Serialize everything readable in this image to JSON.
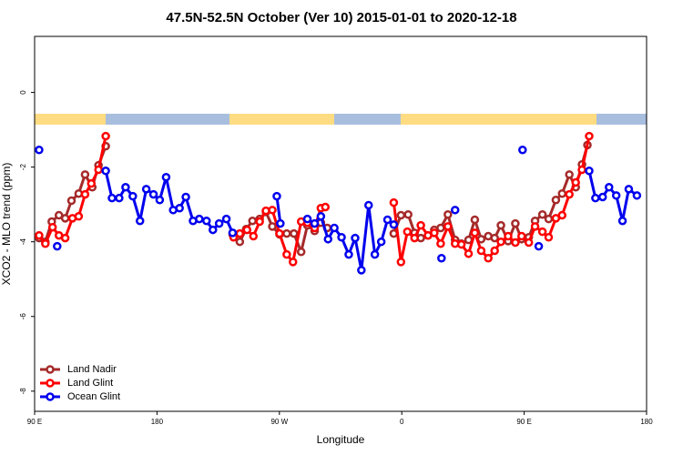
{
  "chart_data": {
    "type": "line",
    "title": "47.5N-52.5N October (Ver 10)   2015-01-01 to 2020-12-18",
    "x_label": "Longitude",
    "y_label": "XCO2 - MLO trend (ppm)",
    "xlim": [
      90,
      540
    ],
    "ylim": [
      -8.54,
      1.5
    ],
    "xticks": [
      {
        "value": 90,
        "label": "90 E"
      },
      {
        "value": 180,
        "label": "180"
      },
      {
        "value": 270,
        "label": "90 W"
      },
      {
        "value": 360,
        "label": "0"
      },
      {
        "value": 450,
        "label": "90 E"
      },
      {
        "value": 540,
        "label": "180"
      }
    ],
    "yticks": [
      0,
      -2,
      -4,
      -6,
      -8
    ],
    "legend": "bottom left",
    "series": [
      {
        "name": "Land Nadir",
        "color": "#a52a2a",
        "x": [
          93.3,
          97.9,
          102.6,
          107.9,
          112.5,
          117.1,
          122.4,
          127.1,
          132.4,
          137,
          142.3,
          null,
          235.6,
          240.9,
          245.6,
          250.2,
          255.5,
          260.1,
          264.8,
          270.1,
          275.4,
          280.7,
          286,
          290.6,
          295.9,
          300.5,
          305.2,
          null,
          354.1,
          359.4,
          364.7,
          369.4,
          374,
          379.3,
          383.9,
          388.6,
          393.9,
          399.2,
          403.8,
          409.1,
          413.7,
          418.4,
          423.6,
          428.3,
          432.9,
          438.2,
          443.5,
          448.1,
          453.4,
          458,
          463.4,
          468,
          473.3,
          477.9,
          483.2,
          487.9,
          492.5,
          496.5
        ],
        "values": [
          -3.9,
          -4.0,
          -3.46,
          -3.29,
          -3.37,
          -2.9,
          -2.71,
          -2.2,
          -2.54,
          -1.95,
          -1.44,
          null,
          -3.8,
          -4.0,
          -3.66,
          -3.44,
          -3.39,
          -3.2,
          -3.59,
          -3.8,
          -3.78,
          -3.78,
          -4.27,
          -3.56,
          -3.71,
          -3.49,
          -3.63,
          null,
          -3.78,
          -3.29,
          -3.27,
          -3.76,
          -3.9,
          -3.83,
          -3.68,
          -3.63,
          -3.27,
          -3.95,
          -4.05,
          -3.95,
          -3.41,
          -3.93,
          -3.85,
          -3.9,
          -3.56,
          -3.98,
          -3.51,
          -3.93,
          -3.88,
          -3.44,
          -3.27,
          -3.39,
          -2.88,
          -2.71,
          -2.2,
          -2.54,
          -1.93,
          -1.41
        ]
      },
      {
        "name": "Land Glint",
        "color": "#ff0000",
        "x": [
          93.3,
          97.9,
          103.2,
          107.9,
          112.5,
          117.8,
          122.4,
          127.1,
          131.7,
          137,
          142.3,
          null,
          236.3,
          240.9,
          246.2,
          250.9,
          255.5,
          260.1,
          264.8,
          270.1,
          275.4,
          280,
          286,
          290.6,
          295.9,
          300.5,
          303.8,
          null,
          354.1,
          359.4,
          364.1,
          369.4,
          374,
          379.3,
          383.9,
          388.6,
          393.9,
          399.2,
          403.8,
          409.1,
          413.7,
          418.4,
          423.6,
          428.3,
          432.9,
          438.2,
          443.5,
          448.1,
          453.4,
          458,
          463.4,
          468,
          473.3,
          477.9,
          483.2,
          487.9,
          492.5,
          497.8
        ],
        "values": [
          -3.83,
          -4.05,
          -3.61,
          -3.83,
          -3.9,
          -3.37,
          -3.32,
          -2.73,
          -2.44,
          -2.07,
          -1.17,
          null,
          -3.88,
          -3.78,
          -3.68,
          -3.85,
          -3.46,
          -3.17,
          -3.15,
          -3.78,
          -4.34,
          -4.54,
          -3.46,
          -3.49,
          -3.63,
          -3.1,
          -3.07,
          null,
          -2.95,
          -4.54,
          -3.73,
          -3.9,
          -3.56,
          -3.83,
          -3.76,
          -4.05,
          -3.59,
          -4.05,
          -4.07,
          -4.32,
          -3.76,
          -4.24,
          -4.44,
          -4.24,
          -4.0,
          -3.85,
          -4.02,
          -3.85,
          -4.02,
          -3.59,
          -3.73,
          -3.88,
          -3.37,
          -3.29,
          -2.73,
          -2.41,
          -2.07,
          -1.17
        ]
      },
      {
        "name": "Ocean Glint",
        "color": "#0000ee",
        "x": [
          93.3,
          null,
          106.6,
          null,
          142.3,
          146.9,
          152.2,
          156.9,
          162.2,
          167.5,
          172.1,
          177.4,
          182,
          186.7,
          191.9,
          196.6,
          201.2,
          206.5,
          211.1,
          216.4,
          221.1,
          225.7,
          231,
          235.6,
          null,
          268.1,
          270.7,
          null,
          290.6,
          295.9,
          300.5,
          305.8,
          310.4,
          315.7,
          321,
          325.7,
          330.3,
          335.6,
          340.2,
          344.9,
          349.5,
          354.1,
          null,
          389.2,
          null,
          399.2,
          null,
          448.8,
          null,
          460.7,
          null,
          497.8,
          502.4,
          507.7,
          512.4,
          517.7,
          522.3,
          526.9,
          532.9
        ],
        "values": [
          -1.54,
          null,
          -4.12,
          null,
          -2.1,
          -2.83,
          -2.83,
          -2.54,
          -2.78,
          -3.44,
          -2.59,
          -2.73,
          -2.88,
          -2.27,
          -3.15,
          -3.1,
          -2.8,
          -3.44,
          -3.39,
          -3.44,
          -3.68,
          -3.51,
          -3.39,
          -3.76,
          null,
          -2.78,
          -3.51,
          null,
          -3.39,
          -3.51,
          -3.32,
          -3.93,
          -3.63,
          -3.88,
          -4.34,
          -3.9,
          -4.76,
          -3.02,
          -4.34,
          -4.0,
          -3.41,
          -3.54,
          null,
          -4.44,
          null,
          -3.15,
          null,
          -1.54,
          null,
          -4.12,
          null,
          -2.1,
          -2.83,
          -2.8,
          -2.54,
          -2.76,
          -3.44,
          -2.59,
          -2.76
        ]
      }
    ]
  }
}
